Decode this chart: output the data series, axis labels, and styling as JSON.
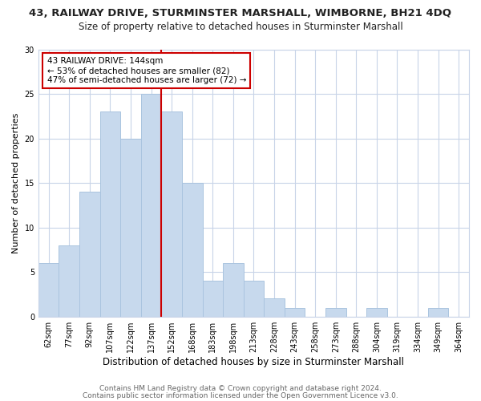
{
  "title1": "43, RAILWAY DRIVE, STURMINSTER MARSHALL, WIMBORNE, BH21 4DQ",
  "title2": "Size of property relative to detached houses in Sturminster Marshall",
  "xlabel": "Distribution of detached houses by size in Sturminster Marshall",
  "ylabel": "Number of detached properties",
  "bar_labels": [
    "62sqm",
    "77sqm",
    "92sqm",
    "107sqm",
    "122sqm",
    "137sqm",
    "152sqm",
    "168sqm",
    "183sqm",
    "198sqm",
    "213sqm",
    "228sqm",
    "243sqm",
    "258sqm",
    "273sqm",
    "288sqm",
    "304sqm",
    "319sqm",
    "334sqm",
    "349sqm",
    "364sqm"
  ],
  "bar_heights": [
    6,
    8,
    14,
    23,
    20,
    25,
    23,
    15,
    4,
    6,
    4,
    2,
    1,
    0,
    1,
    0,
    1,
    0,
    0,
    1,
    0
  ],
  "bar_color": "#c7d9ed",
  "bar_edge_color": "#aac4df",
  "vline_x": 5.5,
  "vline_color": "#cc0000",
  "annotation_line1": "43 RAILWAY DRIVE: 144sqm",
  "annotation_line2": "← 53% of detached houses are smaller (82)",
  "annotation_line3": "47% of semi-detached houses are larger (72) →",
  "annotation_box_edge_color": "#cc0000",
  "ylim": [
    0,
    30
  ],
  "yticks": [
    0,
    5,
    10,
    15,
    20,
    25,
    30
  ],
  "footer1": "Contains HM Land Registry data © Crown copyright and database right 2024.",
  "footer2": "Contains public sector information licensed under the Open Government Licence v3.0.",
  "bg_color": "#ffffff",
  "grid_color": "#c8d4e8",
  "title1_fontsize": 9.5,
  "title2_fontsize": 8.5,
  "xlabel_fontsize": 8.5,
  "ylabel_fontsize": 8,
  "tick_fontsize": 7,
  "footer_fontsize": 6.5,
  "annot_fontsize": 7.5
}
